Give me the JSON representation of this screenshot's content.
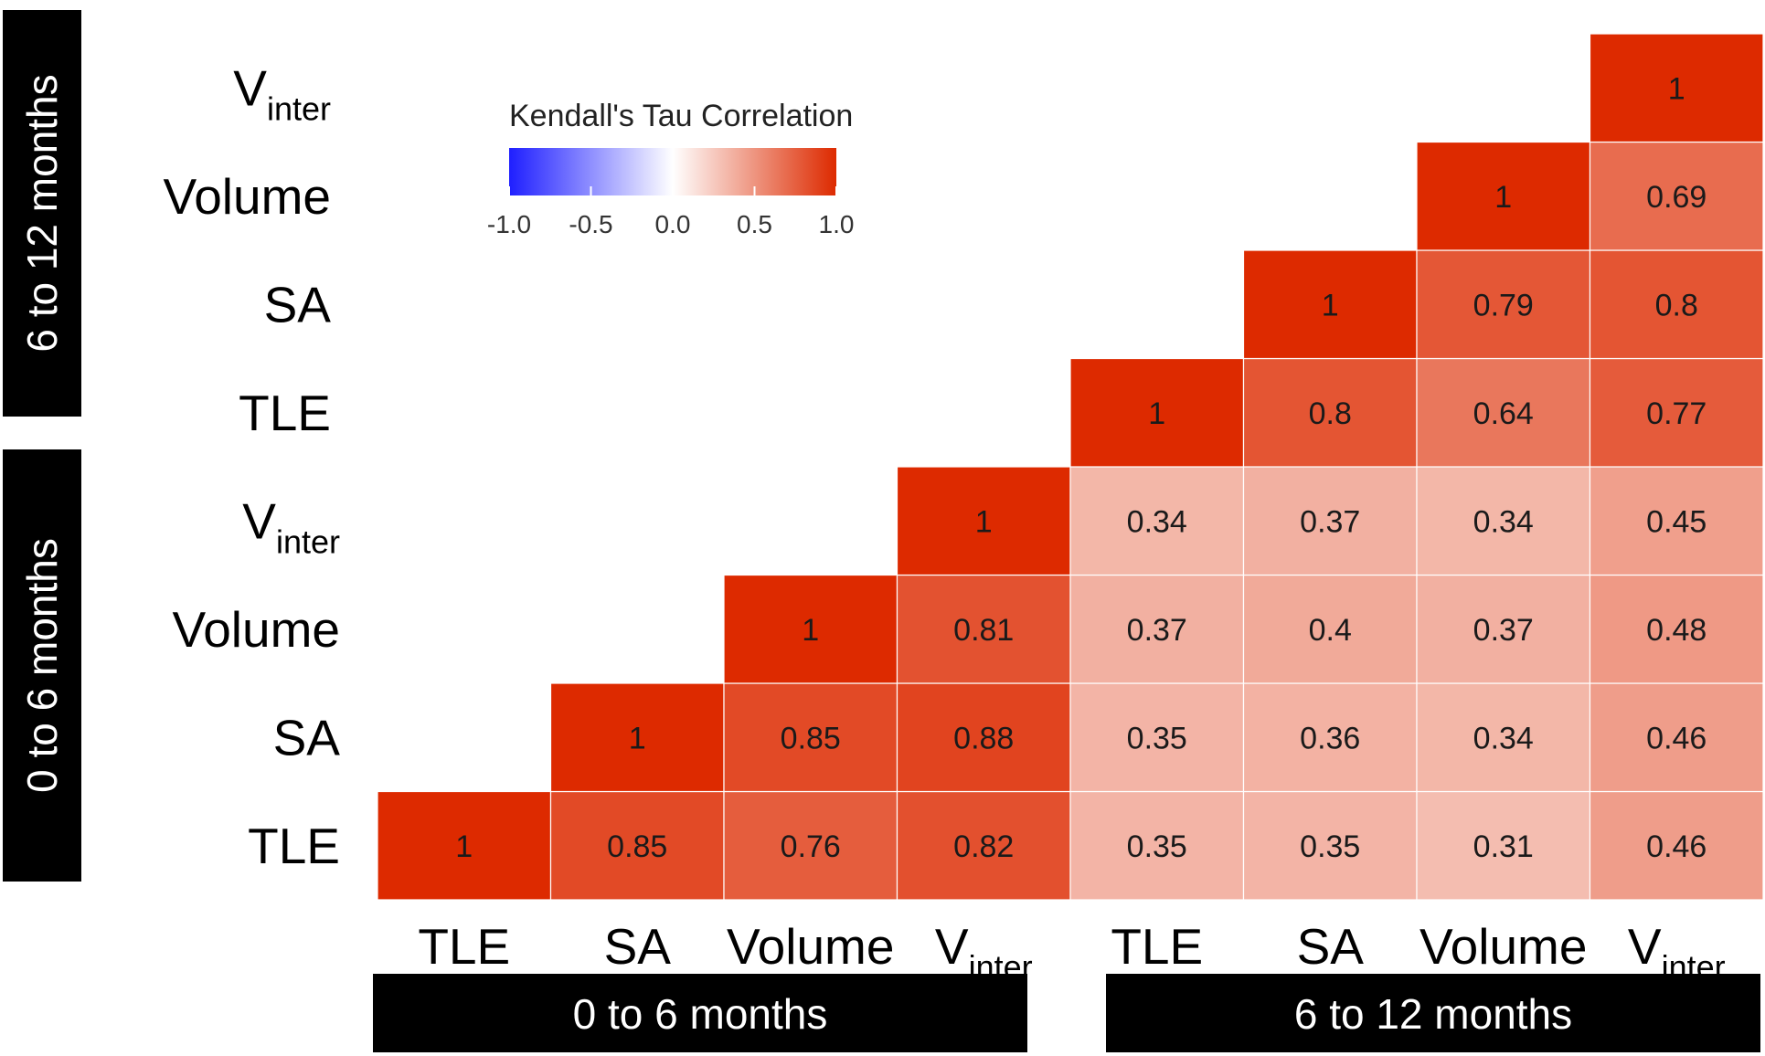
{
  "chart_data": {
    "type": "heatmap",
    "title": "",
    "legend_title": "Kendall's Tau Correlation",
    "legend_ticks": [
      "-1.0",
      "-0.5",
      "0.0",
      "0.5",
      "1.0"
    ],
    "legend_range": [
      -1.0,
      1.0
    ],
    "legend_colors": {
      "low": "#1f1fff",
      "mid": "#ffffff",
      "high": "#dd2a00"
    },
    "x_categories": [
      {
        "main": "TLE",
        "sub": ""
      },
      {
        "main": "SA",
        "sub": ""
      },
      {
        "main": "Volume",
        "sub": ""
      },
      {
        "main": "V",
        "sub": "inter"
      },
      {
        "main": "TLE",
        "sub": ""
      },
      {
        "main": "SA",
        "sub": ""
      },
      {
        "main": "Volume",
        "sub": ""
      },
      {
        "main": "V",
        "sub": "inter"
      }
    ],
    "y_categories": [
      {
        "main": "TLE",
        "sub": ""
      },
      {
        "main": "SA",
        "sub": ""
      },
      {
        "main": "Volume",
        "sub": ""
      },
      {
        "main": "V",
        "sub": "inter"
      },
      {
        "main": "TLE",
        "sub": ""
      },
      {
        "main": "SA",
        "sub": ""
      },
      {
        "main": "Volume",
        "sub": ""
      },
      {
        "main": "V",
        "sub": "inter"
      }
    ],
    "x_groups": [
      "0 to 6 months",
      "6 to 12 months"
    ],
    "y_groups": [
      "0 to 6 months",
      "6 to 12 months"
    ],
    "matrix": [
      [
        "1",
        "0.85",
        "0.76",
        "0.82",
        "0.35",
        "0.35",
        "0.31",
        "0.46"
      ],
      [
        null,
        "1",
        "0.85",
        "0.88",
        "0.35",
        "0.36",
        "0.34",
        "0.46"
      ],
      [
        null,
        null,
        "1",
        "0.81",
        "0.37",
        "0.4",
        "0.37",
        "0.48"
      ],
      [
        null,
        null,
        null,
        "1",
        "0.34",
        "0.37",
        "0.34",
        "0.45"
      ],
      [
        null,
        null,
        null,
        null,
        "1",
        "0.8",
        "0.64",
        "0.77"
      ],
      [
        null,
        null,
        null,
        null,
        null,
        "1",
        "0.79",
        "0.8"
      ],
      [
        null,
        null,
        null,
        null,
        null,
        null,
        "1",
        "0.69"
      ],
      [
        null,
        null,
        null,
        null,
        null,
        null,
        null,
        "1"
      ]
    ]
  }
}
